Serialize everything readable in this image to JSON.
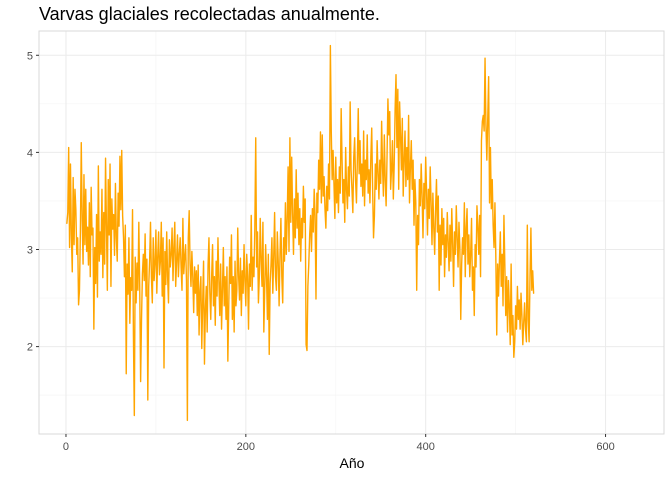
{
  "chart_data": {
    "type": "line",
    "title": "Varvas glaciales recolectadas anualmente.",
    "xlabel": "Año",
    "ylabel": "",
    "xlim": [
      -30,
      665
    ],
    "ylim": [
      1.1,
      5.25
    ],
    "x_ticks": [
      0,
      200,
      400,
      600
    ],
    "y_ticks": [
      2,
      3,
      4,
      5
    ],
    "x_tick_labels": [
      "0",
      "200",
      "400",
      "600"
    ],
    "y_tick_labels": [
      "2",
      "3",
      "4",
      "5"
    ],
    "x_minor_ticks": [
      100,
      300,
      500
    ],
    "y_minor_ticks": [
      1.5,
      2.5,
      3.5,
      4.5
    ],
    "grid": true,
    "line_color": "#FFA500",
    "series": [
      {
        "x_start": 1,
        "x_step": 1,
        "values": [
          3.27,
          3.38,
          4.05,
          3.02,
          3.88,
          3.15,
          2.77,
          3.74,
          3.05,
          3.62,
          3.41,
          2.95,
          3.12,
          2.43,
          2.58,
          3.18,
          4.1,
          3.32,
          2.85,
          3.77,
          3.05,
          3.62,
          2.98,
          3.23,
          2.84,
          3.48,
          2.72,
          3.64,
          3.15,
          3.22,
          2.18,
          3.02,
          2.65,
          3.36,
          2.51,
          3.86,
          2.88,
          3.18,
          2.95,
          3.62,
          2.71,
          3.38,
          2.85,
          3.94,
          3.24,
          2.58,
          3.72,
          3.15,
          3.88,
          2.62,
          3.52,
          3.21,
          3.36,
          2.94,
          3.68,
          3.12,
          2.88,
          3.58,
          3.24,
          3.96,
          3.41,
          4.02,
          3.35,
          3.12,
          2.72,
          3.25,
          1.72,
          2.85,
          2.54,
          3.12,
          2.24,
          2.71,
          2.58,
          3.41,
          2.12,
          1.29,
          2.92,
          2.45,
          2.86,
          2.58,
          3.28,
          2.62,
          1.64,
          2.28,
          2.75,
          2.95,
          2.68,
          3.16,
          2.52,
          2.9,
          1.45,
          2.62,
          2.88,
          3.28,
          2.72,
          2.45,
          3.12,
          2.68,
          2.85,
          3.2,
          2.55,
          2.92,
          3.18,
          2.74,
          2.88,
          3.28,
          2.52,
          3.12,
          1.78,
          2.98,
          2.64,
          3.18,
          2.72,
          2.45,
          3.1,
          2.82,
          2.95,
          3.22,
          2.68,
          3.02,
          3.28,
          2.62,
          2.88,
          3.15,
          2.72,
          2.95,
          3.12,
          2.82,
          2.58,
          3.32,
          2.75,
          2.92,
          3.05,
          2.68,
          1.24,
          3.12,
          3.4,
          2.85,
          2.62,
          2.98,
          2.72,
          2.35,
          2.82,
          2.55,
          2.78,
          2.32,
          2.84,
          2.12,
          2.58,
          2.72,
          1.98,
          2.45,
          2.88,
          1.82,
          2.38,
          2.62,
          2.15,
          2.84,
          3.12,
          2.55,
          2.28,
          2.72,
          3.05,
          2.42,
          2.72,
          2.22,
          2.88,
          2.52,
          3.12,
          2.68,
          2.32,
          2.85,
          2.18,
          2.58,
          3.02,
          2.42,
          2.72,
          2.28,
          2.82,
          1.85,
          2.42,
          2.92,
          2.65,
          3.15,
          2.28,
          2.72,
          2.15,
          2.88,
          2.42,
          2.58,
          3.22,
          2.72,
          2.48,
          2.91,
          2.32,
          2.78,
          2.55,
          3.05,
          2.68,
          2.42,
          2.95,
          2.72,
          2.18,
          2.85,
          2.62,
          3.35,
          2.58,
          2.92,
          2.72,
          3.22,
          4.15,
          2.82,
          3.18,
          2.45,
          2.72,
          3.32,
          2.88,
          2.62,
          3.28,
          2.15,
          2.58,
          3.05,
          2.72,
          2.28,
          2.95,
          1.92,
          2.65,
          2.84,
          3.12,
          2.55,
          2.92,
          3.38,
          2.72,
          2.58,
          3.18,
          2.88,
          2.42,
          2.95,
          3.32,
          2.72,
          2.45,
          3.12,
          2.88,
          3.48,
          2.95,
          3.32,
          3.85,
          2.98,
          4.15,
          3.28,
          3.95,
          3.38,
          2.95,
          3.52,
          3.12,
          3.82,
          3.22,
          3.58,
          3.05,
          3.42,
          2.88,
          3.32,
          3.12,
          3.65,
          3.28,
          3.52,
          2.02,
          1.96,
          2.62,
          2.85,
          3.15,
          3.35,
          2.98,
          3.42,
          3.18,
          3.62,
          3.35,
          2.49,
          3.58,
          3.38,
          3.92,
          3.62,
          4.21,
          3.48,
          4.18,
          3.55,
          3.75,
          3.42,
          3.22,
          3.65,
          3.4,
          3.88,
          3.52,
          5.1,
          4.22,
          3.72,
          4.02,
          3.68,
          3.32,
          3.95,
          3.48,
          3.72,
          3.38,
          3.85,
          3.58,
          4.45,
          3.92,
          3.48,
          3.72,
          3.28,
          4.05,
          3.62,
          3.42,
          3.85,
          3.55,
          4.52,
          3.82,
          3.62,
          3.38,
          3.95,
          4.15,
          3.72,
          3.48,
          3.92,
          4.45,
          3.78,
          4.12,
          3.65,
          3.88,
          3.55,
          4.22,
          3.45,
          3.92,
          3.72,
          4.18,
          3.58,
          3.82,
          3.48,
          3.95,
          4.25,
          3.62,
          3.12,
          3.35,
          3.88,
          3.62,
          4.12,
          3.78,
          3.52,
          3.92,
          3.68,
          4.32,
          3.85,
          3.55,
          4.18,
          3.72,
          3.45,
          3.95,
          4.55,
          4.18,
          4.42,
          3.62,
          3.82,
          4.12,
          3.52,
          3.88,
          4.45,
          4.8,
          4.05,
          4.65,
          3.62,
          4.52,
          4.18,
          3.82,
          4.35,
          3.55,
          3.92,
          4.22,
          3.65,
          4.05,
          3.72,
          4.38,
          3.48,
          3.85,
          4.12,
          3.62,
          3.92,
          3.25,
          3.72,
          3.48,
          2.58,
          3.35,
          3.05,
          3.72,
          3.45,
          3.88,
          3.55,
          3.12,
          3.68,
          3.42,
          3.95,
          3.58,
          3.15,
          3.62,
          3.32,
          3.85,
          3.48,
          3.05,
          3.58,
          3.22,
          2.95,
          3.42,
          3.72,
          3.18,
          3.55,
          2.58,
          3.25,
          2.84,
          3.42,
          3.05,
          3.32,
          2.72,
          3.15,
          2.92,
          3.38,
          3.08,
          2.78,
          3.25,
          2.88,
          3.42,
          3.05,
          2.62,
          3.18,
          2.95,
          3.45,
          3.12,
          2.82,
          3.28,
          3.02,
          2.28,
          2.85,
          3.12,
          2.95,
          3.48,
          2.72,
          3.22,
          3.42,
          2.85,
          3.15,
          2.72,
          2.95,
          3.32,
          2.58,
          2.82,
          2.32,
          3.05,
          2.82,
          3.45,
          3.25,
          2.95,
          3.35,
          2.72,
          4.12,
          4.32,
          4.38,
          4.22,
          4.97,
          4.28,
          3.92,
          4.35,
          4.78,
          3.48,
          4.05,
          3.42,
          3.72,
          3.25,
          3.02,
          3.48,
          2.92,
          2.12,
          2.85,
          2.52,
          2.88,
          3.18,
          2.62,
          2.95,
          2.42,
          3.35,
          2.85,
          2.32,
          2.72,
          2.15,
          2.68,
          2.42,
          2.02,
          2.85,
          2.12,
          2.32,
          1.89,
          2.05,
          2.42,
          2.18,
          2.62,
          2.28,
          2.48,
          2.18,
          2.55,
          2.32,
          2.02,
          2.25,
          2.45,
          2.18,
          2.05,
          3.25,
          2.28,
          2.05,
          2.72,
          3.22,
          2.58,
          2.78,
          2.55
        ]
      }
    ]
  }
}
